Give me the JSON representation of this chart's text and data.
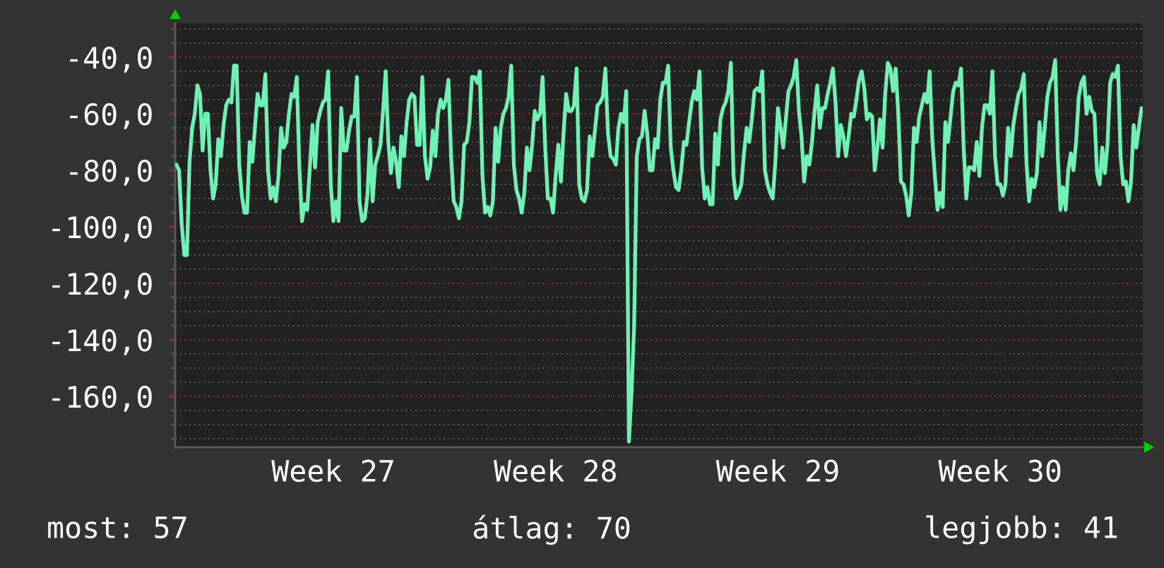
{
  "chart_data": {
    "type": "line",
    "categories": [
      null,
      null,
      null,
      null,
      null,
      null,
      null,
      null,
      null,
      null,
      null,
      null,
      null,
      null,
      null,
      null,
      null,
      null,
      null,
      null,
      null,
      null,
      null,
      null,
      null,
      null,
      null,
      null,
      null,
      null,
      null,
      null,
      null,
      null,
      null,
      null,
      null,
      null,
      null,
      null,
      null,
      null,
      null,
      null,
      null,
      null,
      null,
      null,
      null,
      null,
      null,
      null,
      null,
      null,
      null,
      null,
      null,
      null,
      null,
      null,
      "Week 27",
      null,
      null,
      null,
      null,
      null,
      null,
      null,
      null,
      null,
      null,
      null,
      null,
      null,
      null,
      null,
      null,
      null,
      null,
      null,
      null,
      null,
      null,
      null,
      null,
      null,
      null,
      null,
      null,
      null,
      null,
      null,
      null,
      null,
      null,
      null,
      null,
      null,
      null,
      null,
      null,
      null,
      null,
      null,
      null,
      null,
      null,
      null,
      null,
      null,
      null,
      null,
      null,
      null,
      null,
      null,
      null,
      null,
      null,
      null,
      null,
      null,
      null,
      null,
      null,
      null,
      null,
      null,
      null,
      null,
      null,
      null,
      null,
      null,
      null,
      null,
      null,
      null,
      null,
      null,
      null,
      null,
      null,
      null,
      null,
      "Week 28",
      null,
      null,
      null,
      null,
      null,
      null,
      null,
      null,
      null,
      null,
      null,
      null,
      null,
      null,
      null,
      null,
      null,
      null,
      null,
      null,
      null,
      null,
      null,
      null,
      null,
      null,
      null,
      null,
      null,
      null,
      null,
      null,
      null,
      null,
      null,
      null,
      null,
      null,
      null,
      null,
      null,
      null,
      null,
      null,
      null,
      null,
      null,
      null,
      null,
      null,
      null,
      null,
      null,
      null,
      null,
      null,
      null,
      null,
      null,
      null,
      null,
      null,
      null,
      null,
      null,
      null,
      null,
      null,
      null,
      null,
      null,
      null,
      null,
      null,
      null,
      null,
      null,
      null,
      null,
      null,
      null,
      null,
      null,
      null,
      "Week 29",
      null,
      null,
      null,
      null,
      null,
      null,
      null,
      null,
      null,
      null,
      null,
      null,
      null,
      null,
      null,
      null,
      null,
      null,
      null,
      null,
      null,
      null,
      null,
      null,
      null,
      null,
      null,
      null,
      null,
      null,
      null,
      null,
      null,
      null,
      null,
      null,
      null,
      null,
      null,
      null,
      null,
      null,
      null,
      null,
      null,
      null,
      null,
      null,
      null,
      null,
      null,
      null,
      null,
      null,
      null,
      null,
      null,
      null,
      null,
      null,
      null,
      null,
      null,
      null,
      null,
      null,
      null,
      null,
      null,
      null,
      null,
      null,
      null,
      null,
      null,
      null,
      null,
      null,
      null,
      null,
      null,
      null,
      null,
      null,
      "Week 30",
      null,
      null,
      null,
      null,
      null,
      null,
      null,
      null,
      null,
      null,
      null,
      null,
      null,
      null,
      null,
      null,
      null,
      null,
      null,
      null,
      null,
      null,
      null,
      null,
      null,
      null,
      null,
      null,
      null,
      null,
      null,
      null,
      null,
      null,
      null,
      null,
      null,
      null,
      null,
      null,
      null,
      null,
      null,
      null,
      null,
      null,
      null,
      null,
      null,
      null,
      null,
      null,
      null,
      null
    ],
    "series": [
      {
        "color": "#70f0b4",
        "values": [
          -78,
          -80,
          -99,
          -110,
          -110,
          -77,
          -65,
          -60,
          -50,
          -53,
          -73,
          -60,
          -60,
          -80,
          -90,
          -85,
          -69,
          -75,
          -64,
          -57,
          -55,
          -56,
          -43,
          -43,
          -78,
          -89,
          -95,
          -95,
          -70,
          -77,
          -65,
          -53,
          -57,
          -57,
          -46,
          -80,
          -90,
          -86,
          -91,
          -82,
          -65,
          -72,
          -70,
          -60,
          -53,
          -54,
          -47,
          -79,
          -98,
          -92,
          -94,
          -79,
          -64,
          -79,
          -63,
          -59,
          -56,
          -55,
          -45,
          -85,
          -98,
          -91,
          -98,
          -58,
          -73,
          -73,
          -66,
          -61,
          -61,
          -47,
          -91,
          -98,
          -97,
          -89,
          -69,
          -91,
          -78,
          -75,
          -71,
          -59,
          -45,
          -70,
          -81,
          -72,
          -77,
          -86,
          -68,
          -75,
          -63,
          -55,
          -53,
          -54,
          -71,
          -71,
          -47,
          -75,
          -83,
          -79,
          -66,
          -75,
          -60,
          -55,
          -58,
          -55,
          -48,
          -75,
          -91,
          -93,
          -97,
          -91,
          -71,
          -70,
          -63,
          -47,
          -47,
          -49,
          -45,
          -82,
          -95,
          -93,
          -96,
          -91,
          -65,
          -77,
          -65,
          -60,
          -58,
          -54,
          -43,
          -78,
          -87,
          -90,
          -95,
          -88,
          -72,
          -80,
          -71,
          -59,
          -62,
          -60,
          -47,
          -72,
          -90,
          -90,
          -95,
          -82,
          -71,
          -84,
          -67,
          -53,
          -59,
          -59,
          -57,
          -44,
          -85,
          -90,
          -91,
          -87,
          -68,
          -75,
          -66,
          -57,
          -56,
          -54,
          -44,
          -67,
          -75,
          -76,
          -78,
          -65,
          -60,
          -63,
          -52,
          -176,
          -159,
          -135,
          -75,
          -69,
          -68,
          -59,
          -67,
          -80,
          -80,
          -69,
          -72,
          -55,
          -49,
          -49,
          -43,
          -72,
          -80,
          -86,
          -87,
          -80,
          -70,
          -71,
          -63,
          -56,
          -52,
          -55,
          -45,
          -79,
          -90,
          -86,
          -92,
          -92,
          -67,
          -78,
          -62,
          -58,
          -56,
          -52,
          -42,
          -82,
          -90,
          -88,
          -85,
          -74,
          -65,
          -70,
          -62,
          -52,
          -51,
          -52,
          -45,
          -80,
          -85,
          -88,
          -90,
          -77,
          -58,
          -65,
          -72,
          -62,
          -52,
          -50,
          -47,
          -41,
          -59,
          -68,
          -84,
          -75,
          -78,
          -70,
          -59,
          -50,
          -65,
          -58,
          -58,
          -53,
          -49,
          -44,
          -56,
          -75,
          -64,
          -68,
          -75,
          -68,
          -60,
          -61,
          -55,
          -48,
          -45,
          -51,
          -62,
          -60,
          -61,
          -80,
          -72,
          -62,
          -72,
          -53,
          -42,
          -44,
          -52,
          -44,
          -60,
          -84,
          -85,
          -89,
          -96,
          -88,
          -65,
          -70,
          -61,
          -57,
          -53,
          -56,
          -45,
          -69,
          -82,
          -94,
          -88,
          -93,
          -63,
          -70,
          -61,
          -52,
          -49,
          -50,
          -44,
          -72,
          -90,
          -79,
          -79,
          -80,
          -70,
          -82,
          -65,
          -57,
          -57,
          -60,
          -45,
          -75,
          -85,
          -85,
          -89,
          -85,
          -65,
          -75,
          -64,
          -58,
          -53,
          -51,
          -46,
          -77,
          -91,
          -83,
          -86,
          -81,
          -63,
          -75,
          -65,
          -54,
          -49,
          -47,
          -41,
          -75,
          -94,
          -86,
          -94,
          -80,
          -74,
          -80,
          -70,
          -54,
          -49,
          -47,
          -60,
          -54,
          -59,
          -60,
          -81,
          -85,
          -72,
          -81,
          -71,
          -49,
          -46,
          -47,
          -43,
          -75,
          -85,
          -84,
          -91,
          -84,
          -64,
          -72,
          -65,
          -58
        ]
      }
    ],
    "ylim": [
      -178,
      -28
    ],
    "yticks": [
      {
        "value": -160,
        "label": "-160,0"
      },
      {
        "value": -140,
        "label": "-140,0"
      },
      {
        "value": -120,
        "label": "-120,0"
      },
      {
        "value": -100,
        "label": "-100,0"
      },
      {
        "value": -80,
        "label": "-80,0"
      },
      {
        "value": -60,
        "label": "-60,0"
      },
      {
        "value": -40,
        "label": "-40,0"
      }
    ],
    "grid": "y",
    "marker": "none",
    "line_style": "solid",
    "annotations": [
      "most: 57",
      "átlag: 70",
      "legjobb: 41"
    ]
  }
}
